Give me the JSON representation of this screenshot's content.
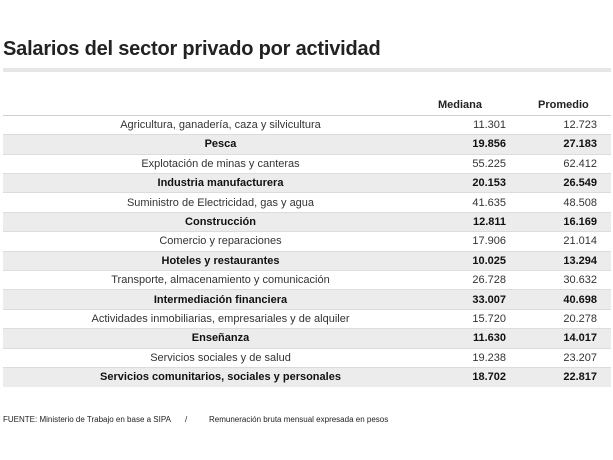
{
  "title": "Salarios del sector privado por actividad",
  "chart_data": {
    "type": "table",
    "title": "Salarios del sector privado por actividad",
    "columns": [
      "",
      "Mediana",
      "Promedio"
    ],
    "rows": [
      {
        "actividad": "Agricultura, ganadería, caza y silvicultura",
        "mediana": "11.301",
        "promedio": "12.723"
      },
      {
        "actividad": "Pesca",
        "mediana": "19.856",
        "promedio": "27.183"
      },
      {
        "actividad": "Explotación de minas y canteras",
        "mediana": "55.225",
        "promedio": "62.412"
      },
      {
        "actividad": "Industria manufacturera",
        "mediana": "20.153",
        "promedio": "26.549"
      },
      {
        "actividad": "Suministro de Electricidad, gas y agua",
        "mediana": "41.635",
        "promedio": "48.508"
      },
      {
        "actividad": "Construcción",
        "mediana": "12.811",
        "promedio": "16.169"
      },
      {
        "actividad": "Comercio y reparaciones",
        "mediana": "17.906",
        "promedio": "21.014"
      },
      {
        "actividad": "Hoteles y restaurantes",
        "mediana": "10.025",
        "promedio": "13.294"
      },
      {
        "actividad": "Transporte, almacenamiento y comunicación",
        "mediana": "26.728",
        "promedio": "30.632"
      },
      {
        "actividad": "Intermediación financiera",
        "mediana": "33.007",
        "promedio": "40.698"
      },
      {
        "actividad": "Actividades inmobiliarias, empresariales y de alquiler",
        "mediana": "15.720",
        "promedio": "20.278"
      },
      {
        "actividad": "Enseñanza",
        "mediana": "11.630",
        "promedio": "14.017"
      },
      {
        "actividad": "Servicios sociales y de salud",
        "mediana": "19.238",
        "promedio": "23.207"
      },
      {
        "actividad": "Servicios comunitarios, sociales y personales",
        "mediana": "18.702",
        "promedio": "22.817"
      }
    ]
  },
  "footer": {
    "source": "FUENTE: Ministerio de Trabajo en base a SIPA",
    "separator": "/",
    "note": "Remuneración bruta mensual expresada en pesos"
  },
  "colors": {
    "row_shade": "#ececec",
    "title_rule": "#e6e6e6"
  }
}
